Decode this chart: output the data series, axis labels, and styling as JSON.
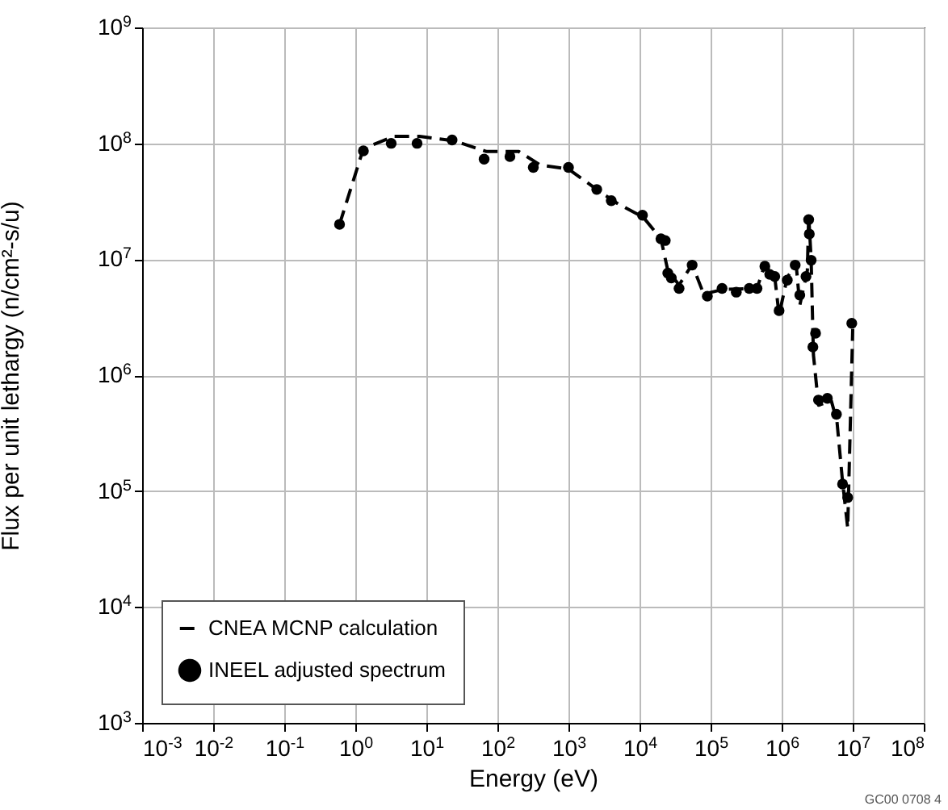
{
  "chart_data": {
    "type": "line",
    "xlabel": "Energy (eV)",
    "ylabel": "Flux per unit lethargy (n/cm²-s/u)",
    "log": "xy",
    "grid": true,
    "legend": "bottom left",
    "xlim": [
      0.001,
      100000000
    ],
    "ylim": [
      1000,
      1000000000
    ],
    "xticks": [
      {
        "value": 0.001,
        "label": "10$^{-3}$"
      },
      {
        "value": 0.01,
        "label": "10$^{-2}$"
      },
      {
        "value": 0.1,
        "label": "10$^{-1}$"
      },
      {
        "value": 1,
        "label": "10$^{0}$"
      },
      {
        "value": 10,
        "label": "10$^{1}$"
      },
      {
        "value": 100,
        "label": "10$^{2}$"
      },
      {
        "value": 1000,
        "label": "10$^{3}$"
      },
      {
        "value": 10000,
        "label": "10$^{4}$"
      },
      {
        "value": 100000,
        "label": "10$^{5}$"
      },
      {
        "value": 1000000,
        "label": "10$^{6}$"
      },
      {
        "value": 10000000,
        "label": "10$^{7}$"
      },
      {
        "value": 100000000,
        "label": "10$^{8}$"
      }
    ],
    "yticks": [
      {
        "value": 1000,
        "label": "10$^{3}$"
      },
      {
        "value": 10000,
        "label": "10$^{4}$"
      },
      {
        "value": 100000,
        "label": "10$^{5}$"
      },
      {
        "value": 1000000,
        "label": "10$^{6}$"
      },
      {
        "value": 10000000,
        "label": "10$^{7}$"
      },
      {
        "value": 100000000,
        "label": "10$^{8}$"
      },
      {
        "value": 1000000000,
        "label": "10$^{9}$"
      }
    ],
    "annotations": [
      "GC00 0708 4"
    ],
    "series": [
      {
        "name": "CNEA MCNP calculation",
        "type": "line",
        "line_style": "dashed",
        "marker": "none",
        "color": "#000000",
        "x": [
          0.6,
          1.3,
          3.5,
          8,
          25,
          70,
          200,
          400,
          1000,
          2500,
          5000,
          10000,
          12000,
          20000,
          25000,
          36000,
          55000,
          80000,
          150000,
          450000,
          580000,
          800000,
          920000,
          1200000,
          1600000,
          1800000,
          2300000,
          2400000,
          2600000,
          2800000,
          3300000,
          5000000,
          6000000,
          7200000,
          8500000,
          10000000
        ],
        "values": [
          20000000,
          90000000,
          115000000,
          115000000,
          105000000,
          85000000,
          85000000,
          65000000,
          60000000,
          40000000,
          30000000,
          24000000,
          22000000,
          15000000,
          8000000,
          6000000,
          9000000,
          5000000,
          5500000,
          5600000,
          9000000,
          7000000,
          3300000,
          7000000,
          9000000,
          4000000,
          8000000,
          24000000,
          10000000,
          1500000,
          550000,
          600000,
          400000,
          120000,
          48000,
          2500000
        ]
      },
      {
        "name": "INEEL adjusted spectrum",
        "type": "scatter",
        "marker": "circle",
        "color": "#000000",
        "x": [
          0.6,
          1.3,
          3.2,
          7.4,
          23,
          65,
          150,
          320,
          1000,
          2500,
          4000,
          11000,
          20000,
          23000,
          25000,
          28000,
          36000,
          55000,
          90000,
          145000,
          230000,
          350000,
          450000,
          580000,
          680000,
          800000,
          920000,
          1200000,
          1550000,
          1800000,
          2200000,
          2400000,
          2450000,
          2600000,
          2750000,
          3000000,
          3300000,
          4400000,
          5900000,
          7200000,
          8500000,
          9700000
        ],
        "values": [
          20000000,
          86000000,
          100000000,
          100000000,
          107000000,
          73000000,
          77000000,
          62000000,
          62000000,
          40000000,
          32000000,
          24000000,
          15000000,
          14500000,
          7600000,
          6900000,
          5600000,
          8900000,
          4800000,
          5600000,
          5200000,
          5600000,
          5600000,
          8700000,
          7400000,
          7100000,
          3600000,
          6600000,
          8900000,
          4900000,
          7100000,
          22000000,
          16500000,
          9800000,
          1750000,
          2300000,
          610000,
          630000,
          460000,
          115000,
          88000,
          2800000
        ]
      }
    ]
  }
}
